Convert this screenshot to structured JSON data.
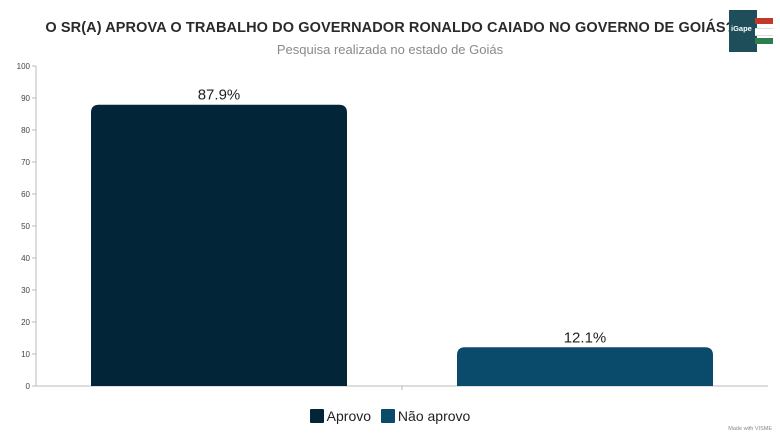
{
  "chart_data": {
    "type": "bar",
    "title": "O SR(A) APROVA O TRABALHO DO GOVERNADOR RONALDO CAIADO NO GOVERNO DE GOIÁS?",
    "subtitle": "Pesquisa realizada no estado de Goiás",
    "categories": [
      "Aprovo",
      "Não aprovo"
    ],
    "values": [
      87.9,
      12.1
    ],
    "data_labels": [
      "87.9%",
      "12.1%"
    ],
    "colors": [
      "#032538",
      "#0a4a6b"
    ],
    "ylim": [
      0,
      100
    ],
    "yticks": [
      0,
      10,
      20,
      30,
      40,
      50,
      60,
      70,
      80,
      90,
      100
    ],
    "grid": false,
    "legend": {
      "placement": "bottom",
      "items": [
        {
          "label": "Aprovo",
          "color": "#032538"
        },
        {
          "label": "Não aprovo",
          "color": "#0a4a6b"
        }
      ]
    }
  },
  "logo": {
    "text": "iGape",
    "colors": [
      "#1d4e5a",
      "#c0392b",
      "#2e7d4f"
    ]
  },
  "credit": "Made with VISME"
}
